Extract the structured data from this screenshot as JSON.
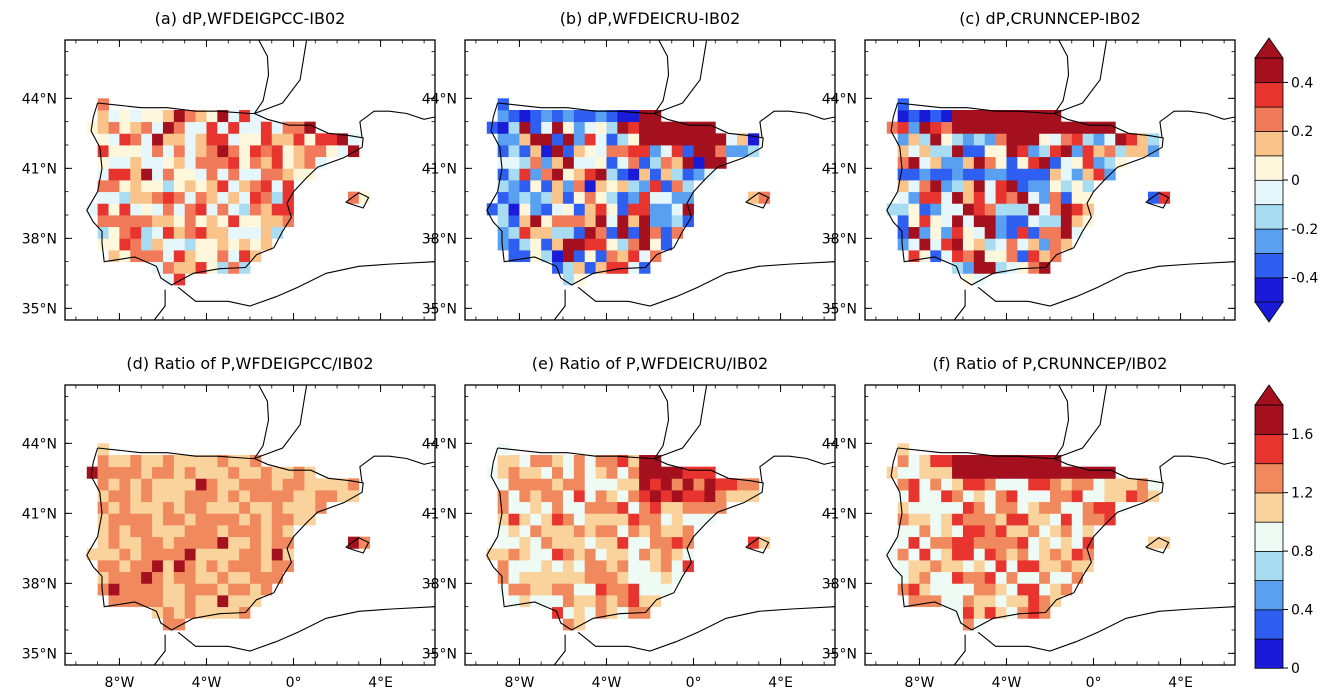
{
  "chart_data": {
    "type": "heatmap",
    "panels": [
      {
        "title": "(a) dP,WFDEIGPCC-IB02",
        "seed": 11,
        "row": 0,
        "col": 0,
        "scale": "diff",
        "pattern": "gpcc_diff"
      },
      {
        "title": "(b) dP,WFDEICRU-IB02",
        "seed": 23,
        "row": 0,
        "col": 1,
        "scale": "diff",
        "pattern": "cru_diff"
      },
      {
        "title": "(c) dP,CRUNNCEP-IB02",
        "seed": 37,
        "row": 0,
        "col": 2,
        "scale": "diff",
        "pattern": "ncep_diff"
      },
      {
        "title": "(d) Ratio of P,WFDEIGPCC/IB02",
        "seed": 41,
        "row": 1,
        "col": 0,
        "scale": "ratio",
        "pattern": "gpcc_ratio"
      },
      {
        "title": "(e) Ratio of P,WFDEICRU/IB02",
        "seed": 53,
        "row": 1,
        "col": 1,
        "scale": "ratio",
        "pattern": "cru_ratio"
      },
      {
        "title": "(f) Ratio of P,CRUNNCEP/IB02",
        "seed": 67,
        "row": 1,
        "col": 2,
        "scale": "ratio",
        "pattern": "ncep_ratio"
      }
    ],
    "lat_ticks": [
      {
        "label": "44°N",
        "value": 44
      },
      {
        "label": "41°N",
        "value": 41
      },
      {
        "label": "38°N",
        "value": 38
      },
      {
        "label": "35°N",
        "value": 35
      }
    ],
    "lon_ticks": [
      {
        "label": "8°W",
        "value": -8
      },
      {
        "label": "4°W",
        "value": -4
      },
      {
        "label": "0°",
        "value": 0
      },
      {
        "label": "4°E",
        "value": 4
      }
    ],
    "lon_range": [
      -10.5,
      6.5
    ],
    "lat_range": [
      34.5,
      46.5
    ],
    "grid_resolution_deg": 0.5,
    "colorbars": {
      "diff": {
        "ticks": [
          "0.4",
          "0.2",
          "0",
          "-0.2",
          "-0.4"
        ],
        "tick_values": [
          0.4,
          0.2,
          0,
          -0.2,
          -0.4
        ],
        "range": [
          -0.5,
          0.5
        ],
        "extend": "both",
        "colors": [
          "#1a1ad9",
          "#2f5ff0",
          "#5aa0f0",
          "#a8dcf2",
          "#e6f7fb",
          "#fff7dc",
          "#f9c38a",
          "#f07a5a",
          "#e8342f",
          "#a5101f"
        ]
      },
      "ratio": {
        "ticks": [
          "1.6",
          "1.2",
          "0.8",
          "0.4",
          "0"
        ],
        "tick_values": [
          1.6,
          1.2,
          0.8,
          0.4,
          0
        ],
        "range": [
          0,
          1.8
        ],
        "extend": "max",
        "colors": [
          "#1a1ad9",
          "#2f5ff0",
          "#5aa0f0",
          "#a8dcf2",
          "#eefaf4",
          "#fad29c",
          "#f08a5e",
          "#e8342f",
          "#a5101f"
        ]
      }
    }
  }
}
